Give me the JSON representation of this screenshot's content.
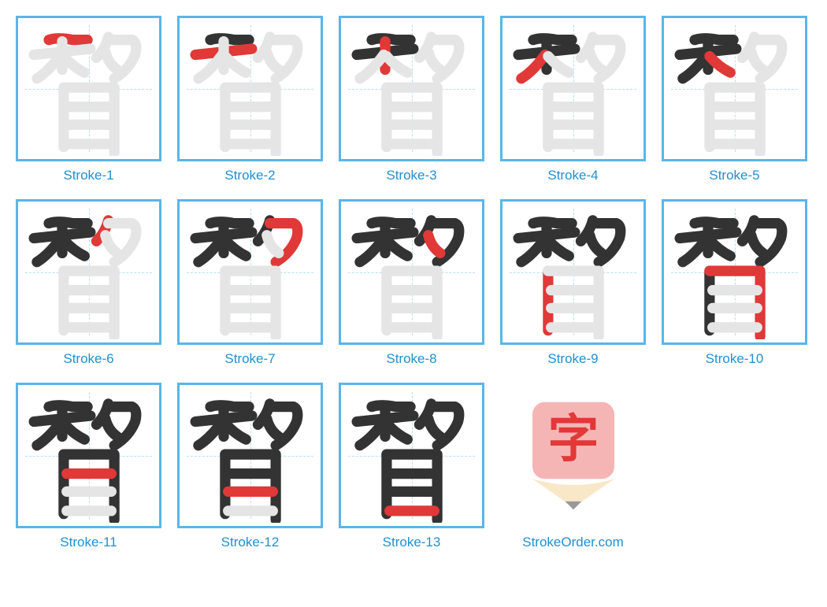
{
  "strokes": [
    {
      "n": 1,
      "label": "Stroke-1"
    },
    {
      "n": 2,
      "label": "Stroke-2"
    },
    {
      "n": 3,
      "label": "Stroke-3"
    },
    {
      "n": 4,
      "label": "Stroke-4"
    },
    {
      "n": 5,
      "label": "Stroke-5"
    },
    {
      "n": 6,
      "label": "Stroke-6"
    },
    {
      "n": 7,
      "label": "Stroke-7"
    },
    {
      "n": 8,
      "label": "Stroke-8"
    },
    {
      "n": 9,
      "label": "Stroke-9"
    },
    {
      "n": 10,
      "label": "Stroke-10"
    },
    {
      "n": 11,
      "label": "Stroke-11"
    },
    {
      "n": 12,
      "label": "Stroke-12"
    },
    {
      "n": 13,
      "label": "Stroke-13"
    }
  ],
  "website": "StrokeOrder.com",
  "colors": {
    "border": "#5bb5e8",
    "guide": "#b8dff5",
    "label": "#2090d0",
    "stroke_prev": "#333333",
    "stroke_current": "#e13838",
    "stroke_future": "#e5e5e5",
    "logo_bg": "#f5b5b5",
    "logo_char": "#e13838",
    "logo_tip": "#999999"
  },
  "char_strokes": [
    "M 18 12 Q 24 10 34 12 L 44 12",
    "M 8 22 L 46 18",
    "M 27 13 L 27 32",
    "M 26 22 Q 18 33 10 38",
    "M 28 23 Q 34 30 42 34",
    "M 58 10 Q 56 18 50 24",
    "M 58 12 L 74 12 Q 78 14 76 22 Q 72 32 62 38",
    "M 56 20 Q 58 28 64 32",
    "M 28 44 L 28 84",
    "M 28 44 L 62 44 L 62 88",
    "M 30 57 L 60 57",
    "M 30 69 L 60 69",
    "M 30 82 L 60 82"
  ],
  "logo_char": "字",
  "layout": {
    "per_row": 5,
    "box_size": 185,
    "gap": 20
  }
}
